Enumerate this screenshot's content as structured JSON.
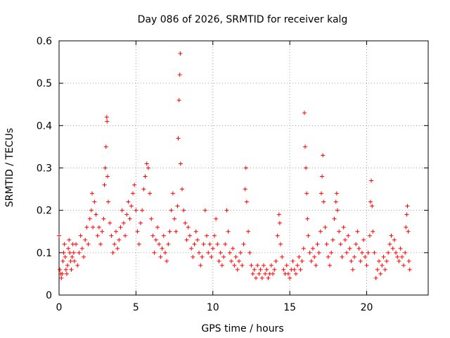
{
  "chart_data": {
    "type": "scatter",
    "title": "Day 086 of 2026, SRMTID for receiver kalg",
    "xlabel": "GPS time / hours",
    "ylabel": "SRMTID / TECUs",
    "xlim": [
      0,
      24
    ],
    "ylim": [
      0,
      0.6
    ],
    "xticks": [
      0,
      5,
      10,
      15,
      20
    ],
    "xtick_labels": [
      "0",
      "5",
      "10",
      "15",
      "20"
    ],
    "yticks": [
      0,
      0.1,
      0.2,
      0.3,
      0.4,
      0.5,
      0.6
    ],
    "ytick_labels": [
      "0",
      "0.1",
      "0.2",
      "0.3",
      "0.4",
      "0.5",
      "0.6"
    ],
    "grid": true,
    "marker": "+",
    "series_color": "#ff0000",
    "series": [
      {
        "name": "SRMTID",
        "points": [
          [
            0.0,
            0.14
          ],
          [
            0.05,
            0.06
          ],
          [
            0.1,
            0.05
          ],
          [
            0.15,
            0.04
          ],
          [
            0.2,
            0.05
          ],
          [
            0.25,
            0.08
          ],
          [
            0.3,
            0.1
          ],
          [
            0.35,
            0.12
          ],
          [
            0.4,
            0.09
          ],
          [
            0.45,
            0.06
          ],
          [
            0.5,
            0.05
          ],
          [
            0.55,
            0.07
          ],
          [
            0.6,
            0.11
          ],
          [
            0.65,
            0.13
          ],
          [
            0.7,
            0.1
          ],
          [
            0.75,
            0.08
          ],
          [
            0.8,
            0.06
          ],
          [
            0.85,
            0.09
          ],
          [
            0.9,
            0.12
          ],
          [
            0.95,
            0.1
          ],
          [
            1.0,
            0.08
          ],
          [
            1.1,
            0.12
          ],
          [
            1.2,
            0.07
          ],
          [
            1.3,
            0.1
          ],
          [
            1.4,
            0.14
          ],
          [
            1.5,
            0.11
          ],
          [
            1.6,
            0.09
          ],
          [
            1.7,
            0.13
          ],
          [
            1.8,
            0.16
          ],
          [
            1.9,
            0.12
          ],
          [
            2.0,
            0.18
          ],
          [
            2.1,
            0.2
          ],
          [
            2.15,
            0.24
          ],
          [
            2.2,
            0.16
          ],
          [
            2.3,
            0.22
          ],
          [
            2.4,
            0.19
          ],
          [
            2.5,
            0.14
          ],
          [
            2.6,
            0.16
          ],
          [
            2.7,
            0.12
          ],
          [
            2.8,
            0.15
          ],
          [
            2.9,
            0.18
          ],
          [
            2.95,
            0.26
          ],
          [
            3.0,
            0.3
          ],
          [
            3.05,
            0.35
          ],
          [
            3.1,
            0.42
          ],
          [
            3.12,
            0.41
          ],
          [
            3.15,
            0.28
          ],
          [
            3.2,
            0.22
          ],
          [
            3.3,
            0.17
          ],
          [
            3.4,
            0.14
          ],
          [
            3.5,
            0.1
          ],
          [
            3.6,
            0.12
          ],
          [
            3.7,
            0.15
          ],
          [
            3.8,
            0.11
          ],
          [
            3.9,
            0.13
          ],
          [
            4.0,
            0.16
          ],
          [
            4.1,
            0.2
          ],
          [
            4.2,
            0.17
          ],
          [
            4.3,
            0.14
          ],
          [
            4.4,
            0.19
          ],
          [
            4.5,
            0.22
          ],
          [
            4.6,
            0.18
          ],
          [
            4.7,
            0.21
          ],
          [
            4.8,
            0.24
          ],
          [
            4.9,
            0.26
          ],
          [
            5.0,
            0.2
          ],
          [
            5.1,
            0.15
          ],
          [
            5.2,
            0.12
          ],
          [
            5.3,
            0.17
          ],
          [
            5.4,
            0.2
          ],
          [
            5.5,
            0.25
          ],
          [
            5.6,
            0.28
          ],
          [
            5.7,
            0.31
          ],
          [
            5.8,
            0.3
          ],
          [
            5.9,
            0.24
          ],
          [
            6.0,
            0.18
          ],
          [
            6.1,
            0.14
          ],
          [
            6.2,
            0.1
          ],
          [
            6.3,
            0.13
          ],
          [
            6.4,
            0.16
          ],
          [
            6.5,
            0.12
          ],
          [
            6.6,
            0.09
          ],
          [
            6.7,
            0.11
          ],
          [
            6.8,
            0.14
          ],
          [
            6.9,
            0.1
          ],
          [
            7.0,
            0.08
          ],
          [
            7.1,
            0.12
          ],
          [
            7.2,
            0.15
          ],
          [
            7.3,
            0.2
          ],
          [
            7.4,
            0.24
          ],
          [
            7.5,
            0.18
          ],
          [
            7.6,
            0.15
          ],
          [
            7.7,
            0.21
          ],
          [
            7.75,
            0.37
          ],
          [
            7.8,
            0.46
          ],
          [
            7.85,
            0.52
          ],
          [
            7.88,
            0.57
          ],
          [
            7.9,
            0.31
          ],
          [
            8.0,
            0.25
          ],
          [
            8.1,
            0.2
          ],
          [
            8.2,
            0.17
          ],
          [
            8.3,
            0.13
          ],
          [
            8.4,
            0.16
          ],
          [
            8.5,
            0.14
          ],
          [
            8.6,
            0.11
          ],
          [
            8.7,
            0.09
          ],
          [
            8.8,
            0.12
          ],
          [
            8.9,
            0.15
          ],
          [
            9.0,
            0.13
          ],
          [
            9.1,
            0.1
          ],
          [
            9.2,
            0.07
          ],
          [
            9.3,
            0.09
          ],
          [
            9.4,
            0.12
          ],
          [
            9.5,
            0.2
          ],
          [
            9.6,
            0.14
          ],
          [
            9.7,
            0.1
          ],
          [
            9.8,
            0.12
          ],
          [
            9.9,
            0.09
          ],
          [
            10.0,
            0.11
          ],
          [
            10.1,
            0.14
          ],
          [
            10.2,
            0.18
          ],
          [
            10.3,
            0.12
          ],
          [
            10.4,
            0.08
          ],
          [
            10.5,
            0.1
          ],
          [
            10.6,
            0.07
          ],
          [
            10.7,
            0.09
          ],
          [
            10.8,
            0.12
          ],
          [
            10.9,
            0.2
          ],
          [
            11.0,
            0.15
          ],
          [
            11.1,
            0.1
          ],
          [
            11.2,
            0.08
          ],
          [
            11.3,
            0.11
          ],
          [
            11.4,
            0.07
          ],
          [
            11.5,
            0.09
          ],
          [
            11.6,
            0.06
          ],
          [
            11.7,
            0.08
          ],
          [
            11.8,
            0.1
          ],
          [
            11.9,
            0.07
          ],
          [
            12.0,
            0.12
          ],
          [
            12.1,
            0.25
          ],
          [
            12.15,
            0.3
          ],
          [
            12.2,
            0.22
          ],
          [
            12.3,
            0.15
          ],
          [
            12.4,
            0.1
          ],
          [
            12.5,
            0.07
          ],
          [
            12.6,
            0.05
          ],
          [
            12.7,
            0.06
          ],
          [
            12.8,
            0.04
          ],
          [
            12.9,
            0.07
          ],
          [
            13.0,
            0.05
          ],
          [
            13.1,
            0.06
          ],
          [
            13.2,
            0.04
          ],
          [
            13.3,
            0.07
          ],
          [
            13.4,
            0.05
          ],
          [
            13.5,
            0.06
          ],
          [
            13.6,
            0.04
          ],
          [
            13.7,
            0.05
          ],
          [
            13.8,
            0.07
          ],
          [
            13.9,
            0.05
          ],
          [
            14.0,
            0.06
          ],
          [
            14.1,
            0.08
          ],
          [
            14.2,
            0.14
          ],
          [
            14.3,
            0.19
          ],
          [
            14.35,
            0.17
          ],
          [
            14.4,
            0.12
          ],
          [
            14.5,
            0.09
          ],
          [
            14.6,
            0.06
          ],
          [
            14.7,
            0.05
          ],
          [
            14.8,
            0.07
          ],
          [
            14.9,
            0.05
          ],
          [
            15.0,
            0.04
          ],
          [
            15.1,
            0.06
          ],
          [
            15.2,
            0.08
          ],
          [
            15.3,
            0.06
          ],
          [
            15.4,
            0.05
          ],
          [
            15.5,
            0.07
          ],
          [
            15.6,
            0.09
          ],
          [
            15.7,
            0.06
          ],
          [
            15.8,
            0.08
          ],
          [
            15.9,
            0.11
          ],
          [
            15.95,
            0.43
          ],
          [
            16.0,
            0.35
          ],
          [
            16.05,
            0.3
          ],
          [
            16.1,
            0.24
          ],
          [
            16.15,
            0.18
          ],
          [
            16.2,
            0.14
          ],
          [
            16.3,
            0.1
          ],
          [
            16.4,
            0.08
          ],
          [
            16.5,
            0.11
          ],
          [
            16.6,
            0.09
          ],
          [
            16.7,
            0.07
          ],
          [
            16.8,
            0.12
          ],
          [
            16.9,
            0.1
          ],
          [
            17.0,
            0.15
          ],
          [
            17.05,
            0.24
          ],
          [
            17.1,
            0.28
          ],
          [
            17.15,
            0.33
          ],
          [
            17.2,
            0.22
          ],
          [
            17.3,
            0.16
          ],
          [
            17.4,
            0.12
          ],
          [
            17.5,
            0.09
          ],
          [
            17.6,
            0.07
          ],
          [
            17.7,
            0.1
          ],
          [
            17.8,
            0.13
          ],
          [
            17.9,
            0.18
          ],
          [
            18.0,
            0.22
          ],
          [
            18.05,
            0.24
          ],
          [
            18.1,
            0.2
          ],
          [
            18.2,
            0.15
          ],
          [
            18.3,
            0.12
          ],
          [
            18.4,
            0.09
          ],
          [
            18.5,
            0.16
          ],
          [
            18.6,
            0.13
          ],
          [
            18.7,
            0.1
          ],
          [
            18.8,
            0.14
          ],
          [
            18.9,
            0.11
          ],
          [
            19.0,
            0.08
          ],
          [
            19.1,
            0.06
          ],
          [
            19.2,
            0.09
          ],
          [
            19.3,
            0.12
          ],
          [
            19.4,
            0.15
          ],
          [
            19.5,
            0.11
          ],
          [
            19.6,
            0.08
          ],
          [
            19.7,
            0.1
          ],
          [
            19.8,
            0.13
          ],
          [
            19.9,
            0.09
          ],
          [
            20.0,
            0.07
          ],
          [
            20.1,
            0.1
          ],
          [
            20.2,
            0.14
          ],
          [
            20.25,
            0.22
          ],
          [
            20.3,
            0.27
          ],
          [
            20.35,
            0.21
          ],
          [
            20.4,
            0.15
          ],
          [
            20.5,
            0.1
          ],
          [
            20.6,
            0.04
          ],
          [
            20.7,
            0.06
          ],
          [
            20.8,
            0.08
          ],
          [
            20.9,
            0.05
          ],
          [
            21.0,
            0.07
          ],
          [
            21.1,
            0.09
          ],
          [
            21.2,
            0.06
          ],
          [
            21.3,
            0.08
          ],
          [
            21.4,
            0.1
          ],
          [
            21.5,
            0.12
          ],
          [
            21.6,
            0.14
          ],
          [
            21.7,
            0.11
          ],
          [
            21.8,
            0.13
          ],
          [
            21.9,
            0.1
          ],
          [
            22.0,
            0.09
          ],
          [
            22.1,
            0.08
          ],
          [
            22.2,
            0.11
          ],
          [
            22.3,
            0.09
          ],
          [
            22.4,
            0.07
          ],
          [
            22.5,
            0.1
          ],
          [
            22.55,
            0.16
          ],
          [
            22.6,
            0.19
          ],
          [
            22.65,
            0.21
          ],
          [
            22.7,
            0.15
          ],
          [
            22.75,
            0.08
          ],
          [
            22.8,
            0.06
          ]
        ]
      }
    ]
  }
}
